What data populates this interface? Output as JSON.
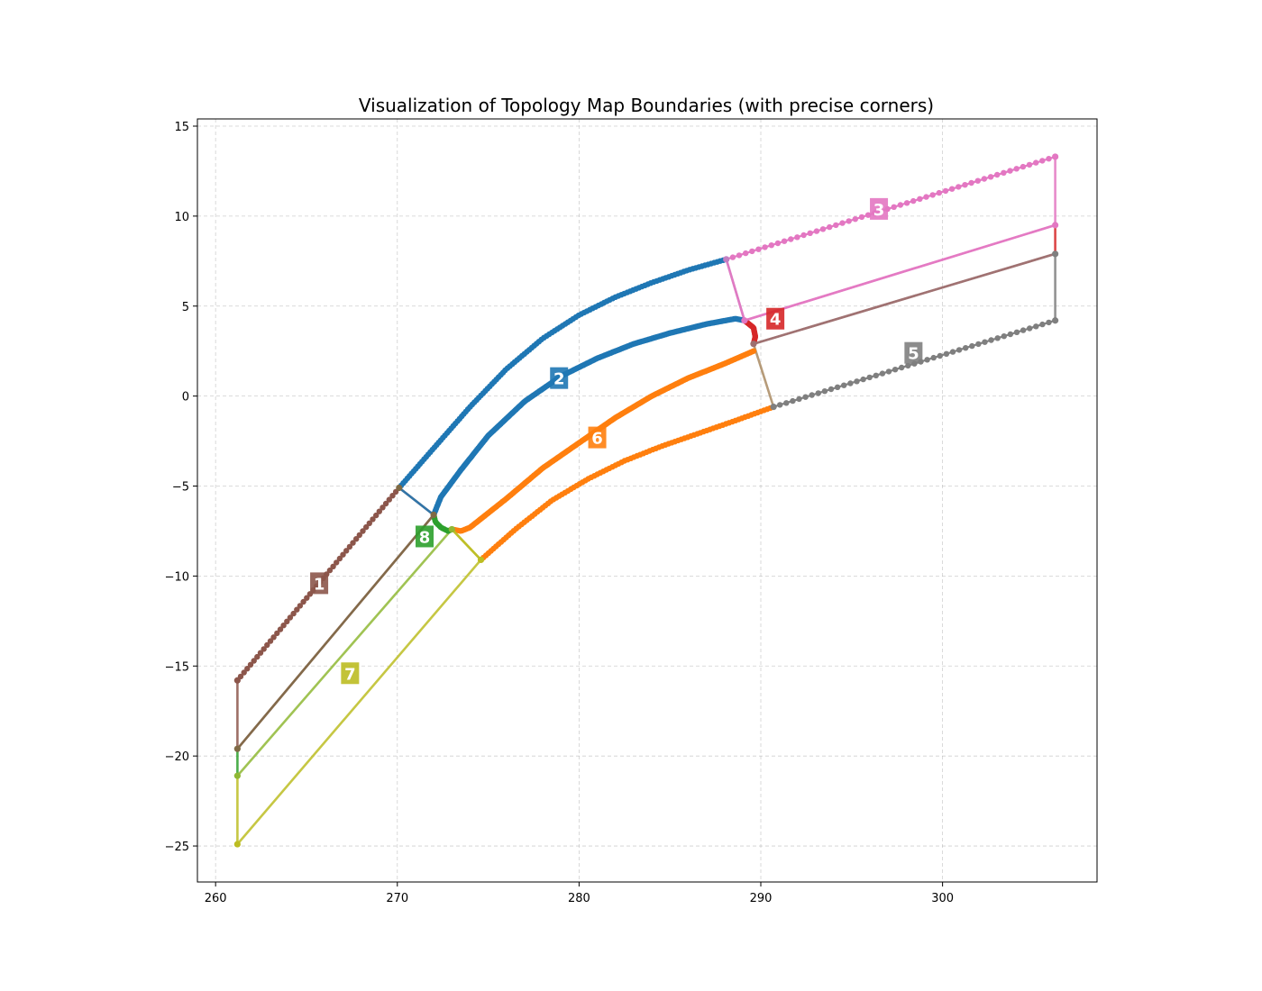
{
  "chart_data": {
    "type": "line",
    "title": "Visualization of Topology Map Boundaries (with precise corners)",
    "xlabel": "",
    "ylabel": "",
    "xlim": [
      259,
      308.5
    ],
    "ylim": [
      -27,
      15.4
    ],
    "xticks": [
      260,
      270,
      280,
      290,
      300
    ],
    "yticks": [
      15,
      10,
      5,
      0,
      -5,
      -10,
      -15,
      -20,
      -25
    ],
    "ytick_labels": [
      "15",
      "10",
      "5",
      "0",
      "−5",
      "−10",
      "−15",
      "−20",
      "−25"
    ],
    "grid": true,
    "regions": [
      {
        "label": "1",
        "color": "#8c564b",
        "label_at": [
          265.7,
          -10.4
        ],
        "boundaries": [
          {
            "points": [
              [
                261.2,
                -15.8
              ],
              [
                270.1,
                -5.1
              ]
            ],
            "markers": true,
            "n": 50
          },
          {
            "points": [
              [
                270.1,
                -5.1
              ],
              [
                272.0,
                -6.6
              ]
            ],
            "markers": false
          },
          {
            "points": [
              [
                272.0,
                -6.6
              ],
              [
                261.2,
                -19.6
              ]
            ],
            "markers": false
          },
          {
            "points": [
              [
                261.2,
                -19.6
              ],
              [
                261.2,
                -15.8
              ]
            ],
            "markers": false
          }
        ]
      },
      {
        "label": "2",
        "color": "#1f77b4",
        "label_at": [
          278.9,
          1.0
        ],
        "boundaries": [
          {
            "points": [
              [
                270.1,
                -5.1
              ],
              [
                272.0,
                -2.9
              ],
              [
                274.0,
                -0.6
              ],
              [
                276.0,
                1.5
              ],
              [
                278.0,
                3.2
              ],
              [
                280.0,
                4.5
              ],
              [
                282.0,
                5.5
              ],
              [
                284.0,
                6.3
              ],
              [
                286.0,
                7.0
              ],
              [
                288.1,
                7.6
              ]
            ],
            "markers": true,
            "n": 130
          },
          {
            "points": [
              [
                288.1,
                7.6
              ],
              [
                289.1,
                4.2
              ]
            ],
            "markers": false,
            "color": "#c27fc2"
          },
          {
            "points": [
              [
                289.1,
                4.2
              ],
              [
                288.6,
                4.3
              ],
              [
                287.0,
                4.0
              ],
              [
                285.0,
                3.5
              ],
              [
                283.0,
                2.9
              ],
              [
                281.0,
                2.1
              ],
              [
                279.0,
                1.1
              ],
              [
                277.0,
                -0.3
              ],
              [
                275.0,
                -2.2
              ],
              [
                273.5,
                -4.1
              ],
              [
                272.4,
                -5.6
              ],
              [
                272.0,
                -6.6
              ]
            ],
            "markers": true,
            "n": 220
          },
          {
            "points": [
              [
                272.0,
                -6.6
              ],
              [
                270.1,
                -5.1
              ]
            ],
            "markers": false
          }
        ]
      },
      {
        "label": "3",
        "color": "#e377c2",
        "label_at": [
          296.5,
          10.4
        ],
        "boundaries": [
          {
            "points": [
              [
                288.1,
                7.6
              ],
              [
                306.2,
                13.3
              ]
            ],
            "markers": true,
            "n": 52
          },
          {
            "points": [
              [
                306.2,
                13.3
              ],
              [
                306.2,
                9.5
              ]
            ],
            "markers": false
          },
          {
            "points": [
              [
                306.2,
                9.5
              ],
              [
                289.1,
                4.2
              ]
            ],
            "markers": false
          },
          {
            "points": [
              [
                289.1,
                4.2
              ],
              [
                288.1,
                7.6
              ]
            ],
            "markers": false
          }
        ]
      },
      {
        "label": "4",
        "color": "#d62728",
        "label_at": [
          290.8,
          4.3
        ],
        "boundaries": [
          {
            "points": [
              [
                289.1,
                4.2
              ],
              [
                289.6,
                3.8
              ],
              [
                289.7,
                3.3
              ],
              [
                289.6,
                2.9
              ]
            ],
            "markers": true,
            "n": 22
          },
          {
            "points": [
              [
                289.6,
                2.9
              ],
              [
                306.2,
                7.9
              ]
            ],
            "markers": false,
            "color": "#9d6f6f"
          },
          {
            "points": [
              [
                306.2,
                7.9
              ],
              [
                306.2,
                9.5
              ]
            ],
            "markers": false
          },
          {
            "points": [
              [
                306.2,
                9.5
              ],
              [
                289.1,
                4.2
              ]
            ],
            "markers": false,
            "color": "#e377c2"
          }
        ]
      },
      {
        "label": "5",
        "color": "#7f7f7f",
        "label_at": [
          298.4,
          2.4
        ],
        "boundaries": [
          {
            "points": [
              [
                290.7,
                -0.6
              ],
              [
                306.2,
                4.2
              ]
            ],
            "markers": true,
            "n": 45
          },
          {
            "points": [
              [
                306.2,
                4.2
              ],
              [
                306.2,
                7.9
              ]
            ],
            "markers": false
          },
          {
            "points": [
              [
                306.2,
                7.9
              ],
              [
                289.6,
                2.9
              ]
            ],
            "markers": false,
            "color": "#9d6f6f"
          },
          {
            "points": [
              [
                289.6,
                2.9
              ],
              [
                290.7,
                -0.6
              ]
            ],
            "markers": false,
            "color": "#a98962"
          }
        ]
      },
      {
        "label": "6",
        "color": "#ff7f0e",
        "label_at": [
          281.0,
          -2.3
        ],
        "boundaries": [
          {
            "points": [
              [
                289.6,
                2.5
              ],
              [
                288.0,
                1.8
              ],
              [
                286.0,
                1.0
              ],
              [
                284.0,
                0.0
              ],
              [
                282.0,
                -1.2
              ],
              [
                280.0,
                -2.6
              ],
              [
                278.0,
                -4.0
              ],
              [
                276.0,
                -5.7
              ],
              [
                274.0,
                -7.3
              ],
              [
                273.5,
                -7.5
              ],
              [
                273.0,
                -7.4
              ]
            ],
            "markers": true,
            "n": 210
          },
          {
            "points": [
              [
                273.0,
                -7.4
              ],
              [
                274.6,
                -9.1
              ]
            ],
            "markers": false,
            "color": "#bcbd22"
          },
          {
            "points": [
              [
                274.6,
                -9.1
              ],
              [
                276.5,
                -7.4
              ],
              [
                278.5,
                -5.8
              ],
              [
                280.5,
                -4.6
              ],
              [
                282.5,
                -3.6
              ],
              [
                284.5,
                -2.8
              ],
              [
                286.5,
                -2.1
              ],
              [
                288.5,
                -1.4
              ],
              [
                290.7,
                -0.6
              ]
            ],
            "markers": true,
            "n": 100
          }
        ]
      },
      {
        "label": "7",
        "color": "#bcbd22",
        "label_at": [
          267.4,
          -15.4
        ],
        "boundaries": [
          {
            "points": [
              [
                261.2,
                -21.1
              ],
              [
                273.0,
                -7.4
              ]
            ],
            "markers": false,
            "color": "#8fb835"
          },
          {
            "points": [
              [
                273.0,
                -7.4
              ],
              [
                274.6,
                -9.1
              ]
            ],
            "markers": false
          },
          {
            "points": [
              [
                274.6,
                -9.1
              ],
              [
                261.2,
                -24.9
              ]
            ],
            "markers": false
          },
          {
            "points": [
              [
                261.2,
                -24.9
              ],
              [
                261.2,
                -21.1
              ]
            ],
            "markers": false
          }
        ]
      },
      {
        "label": "8",
        "color": "#2ca02c",
        "label_at": [
          271.5,
          -7.8
        ],
        "boundaries": [
          {
            "points": [
              [
                272.0,
                -6.6
              ],
              [
                272.1,
                -7.0
              ],
              [
                272.4,
                -7.3
              ],
              [
                272.8,
                -7.5
              ],
              [
                273.0,
                -7.4
              ]
            ],
            "markers": true,
            "n": 14
          },
          {
            "points": [
              [
                272.0,
                -6.6
              ],
              [
                261.2,
                -19.6
              ]
            ],
            "markers": false,
            "color": "#7f6a45"
          },
          {
            "points": [
              [
                261.2,
                -19.6
              ],
              [
                261.2,
                -21.1
              ]
            ],
            "markers": false
          }
        ]
      }
    ],
    "corners": [
      {
        "at": [
          261.2,
          -15.8
        ],
        "color": "#8c564b"
      },
      {
        "at": [
          261.2,
          -19.6
        ],
        "color": "#7f6a45"
      },
      {
        "at": [
          261.2,
          -21.1
        ],
        "color": "#8fb835"
      },
      {
        "at": [
          261.2,
          -24.9
        ],
        "color": "#bcbd22"
      },
      {
        "at": [
          270.1,
          -5.1
        ],
        "color": "#7f6a45"
      },
      {
        "at": [
          272.0,
          -6.6
        ],
        "color": "#7f6a45"
      },
      {
        "at": [
          273.0,
          -7.4
        ],
        "color": "#8fb835"
      },
      {
        "at": [
          274.6,
          -9.1
        ],
        "color": "#bcbd22"
      },
      {
        "at": [
          288.1,
          7.6
        ],
        "color": "#c27fc2"
      },
      {
        "at": [
          289.1,
          4.2
        ],
        "color": "#e377c2"
      },
      {
        "at": [
          289.6,
          2.9
        ],
        "color": "#9d6f6f"
      },
      {
        "at": [
          290.7,
          -0.6
        ],
        "color": "#7f7f7f"
      },
      {
        "at": [
          306.2,
          13.3
        ],
        "color": "#e377c2"
      },
      {
        "at": [
          306.2,
          9.5
        ],
        "color": "#e377c2"
      },
      {
        "at": [
          306.2,
          7.9
        ],
        "color": "#7f7f7f"
      },
      {
        "at": [
          306.2,
          4.2
        ],
        "color": "#7f7f7f"
      }
    ]
  }
}
